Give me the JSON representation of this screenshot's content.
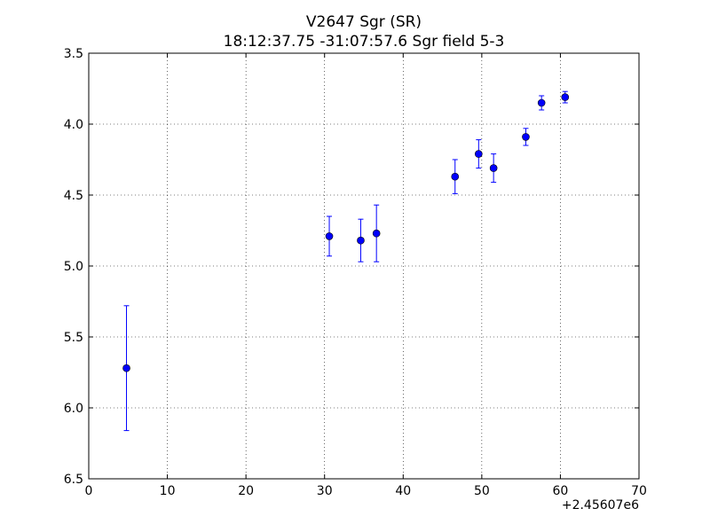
{
  "chart_data": {
    "type": "scatter",
    "title": "V2647 Sgr  (SR)",
    "subtitle": "18:12:37.75 -31:07:57.6 Sgr field 5-3",
    "xlabel": "",
    "ylabel": "",
    "x_offset_label": "+2.45607e6",
    "xlim": [
      0,
      70
    ],
    "ylim": [
      6.5,
      3.5
    ],
    "y_inverted": true,
    "grid": true,
    "x_ticks": [
      "0",
      "10",
      "20",
      "30",
      "40",
      "50",
      "60",
      "70"
    ],
    "y_ticks": [
      "3.5",
      "4.0",
      "4.5",
      "5.0",
      "5.5",
      "6.0",
      "6.5"
    ],
    "color": "#0000ff",
    "points": [
      {
        "x": 4.8,
        "y": 5.72,
        "err": 0.44
      },
      {
        "x": 30.6,
        "y": 4.79,
        "err": 0.14
      },
      {
        "x": 34.6,
        "y": 4.82,
        "err": 0.15
      },
      {
        "x": 36.6,
        "y": 4.77,
        "err": 0.2
      },
      {
        "x": 46.6,
        "y": 4.37,
        "err": 0.12
      },
      {
        "x": 49.6,
        "y": 4.21,
        "err": 0.1
      },
      {
        "x": 51.5,
        "y": 4.31,
        "err": 0.1
      },
      {
        "x": 55.6,
        "y": 4.09,
        "err": 0.06
      },
      {
        "x": 57.6,
        "y": 3.85,
        "err": 0.05
      },
      {
        "x": 60.6,
        "y": 3.81,
        "err": 0.04
      }
    ]
  }
}
